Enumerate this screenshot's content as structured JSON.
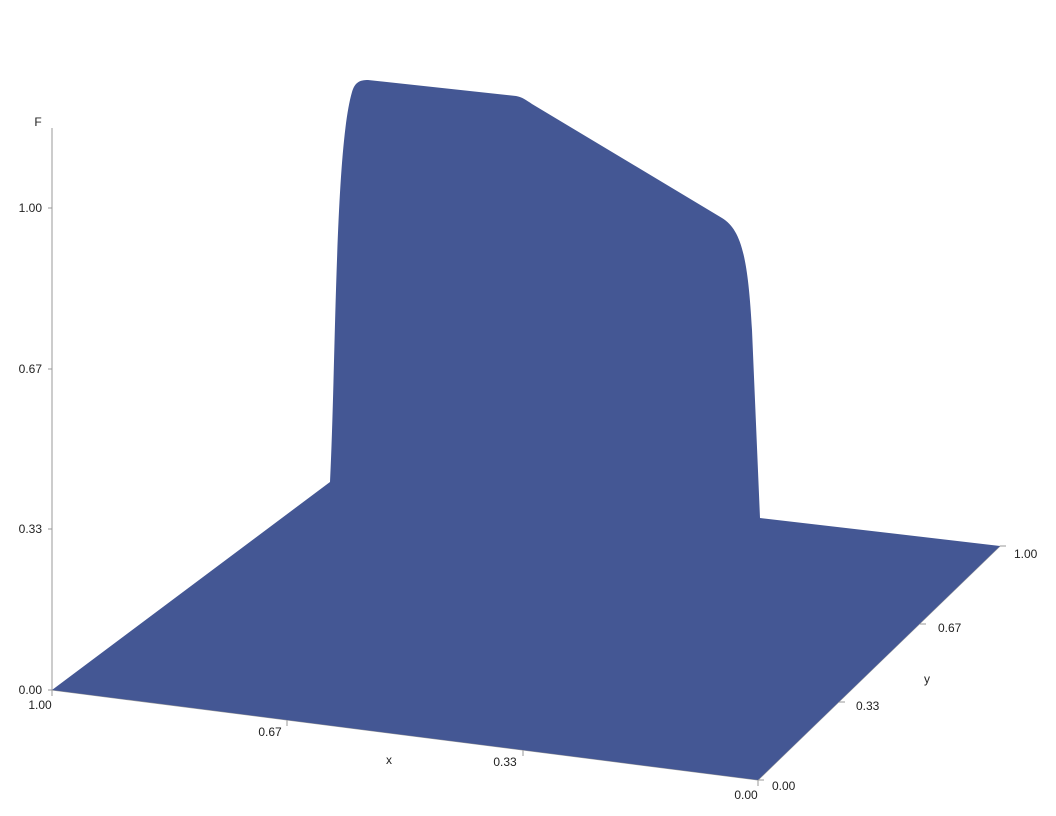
{
  "chart_data": {
    "type": "surface",
    "xlabel": "x",
    "ylabel": "y",
    "zlabel": "F",
    "x_ticks": [
      "1.00",
      "0.67",
      "0.33",
      "0.00"
    ],
    "y_ticks": [
      "0.00",
      "0.33",
      "0.67",
      "1.00"
    ],
    "z_ticks": [
      "0.00",
      "0.33",
      "0.67",
      "1.00"
    ],
    "xlim": [
      0,
      1
    ],
    "ylim": [
      0,
      1
    ],
    "zlim": [
      0,
      1.2
    ],
    "surface_color": "#445794",
    "edge_color": "#999999",
    "description_points": {
      "base_level": 0.4,
      "plateau_max": 1.2,
      "plateau_at_right": 0.98
    }
  }
}
